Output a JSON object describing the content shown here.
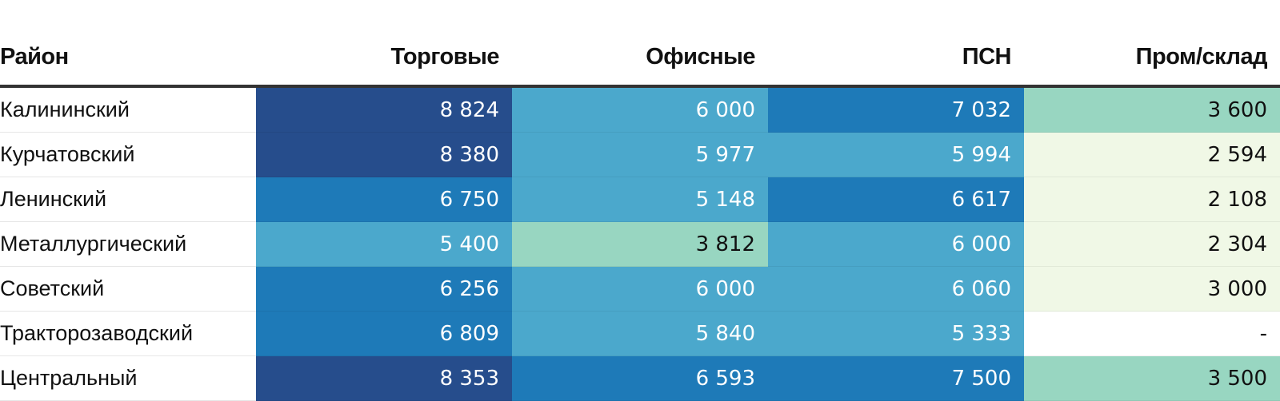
{
  "chart_data": {
    "type": "table",
    "columns": [
      "Район",
      "Торговые",
      "Офисные",
      "ПСН",
      "Пром/склад"
    ],
    "rows": [
      {
        "district": "Калининский",
        "values": [
          "8 824",
          "6 000",
          "7 032",
          "3 600"
        ]
      },
      {
        "district": "Курчатовский",
        "values": [
          "8 380",
          "5 977",
          "5 994",
          "2 594"
        ]
      },
      {
        "district": "Ленинский",
        "values": [
          "6 750",
          "5 148",
          "6 617",
          "2 108"
        ]
      },
      {
        "district": "Металлургический",
        "values": [
          "5 400",
          "3 812",
          "6 000",
          "2 304"
        ]
      },
      {
        "district": "Советский",
        "values": [
          "6 256",
          "6 000",
          "6 060",
          "3 000"
        ]
      },
      {
        "district": "Тракторозаводский",
        "values": [
          "6 809",
          "5 840",
          "5 333",
          "-"
        ]
      },
      {
        "district": "Центральный",
        "values": [
          "8 353",
          "6 593",
          "7 500",
          "3 500"
        ]
      }
    ],
    "color_scale": [
      {
        "min": 8000,
        "bg": "#264d8c",
        "fg": "#ffffff"
      },
      {
        "min": 6100,
        "bg": "#1e7ab8",
        "fg": "#ffffff"
      },
      {
        "min": 4000,
        "bg": "#4ba8cc",
        "fg": "#ffffff"
      },
      {
        "min": 3300,
        "bg": "#98d6c1",
        "fg": "#111111"
      },
      {
        "min": 0,
        "bg": "#f0f8e6",
        "fg": "#111111"
      }
    ],
    "missing_style": {
      "bg": "#ffffff",
      "fg": "#111111"
    }
  }
}
